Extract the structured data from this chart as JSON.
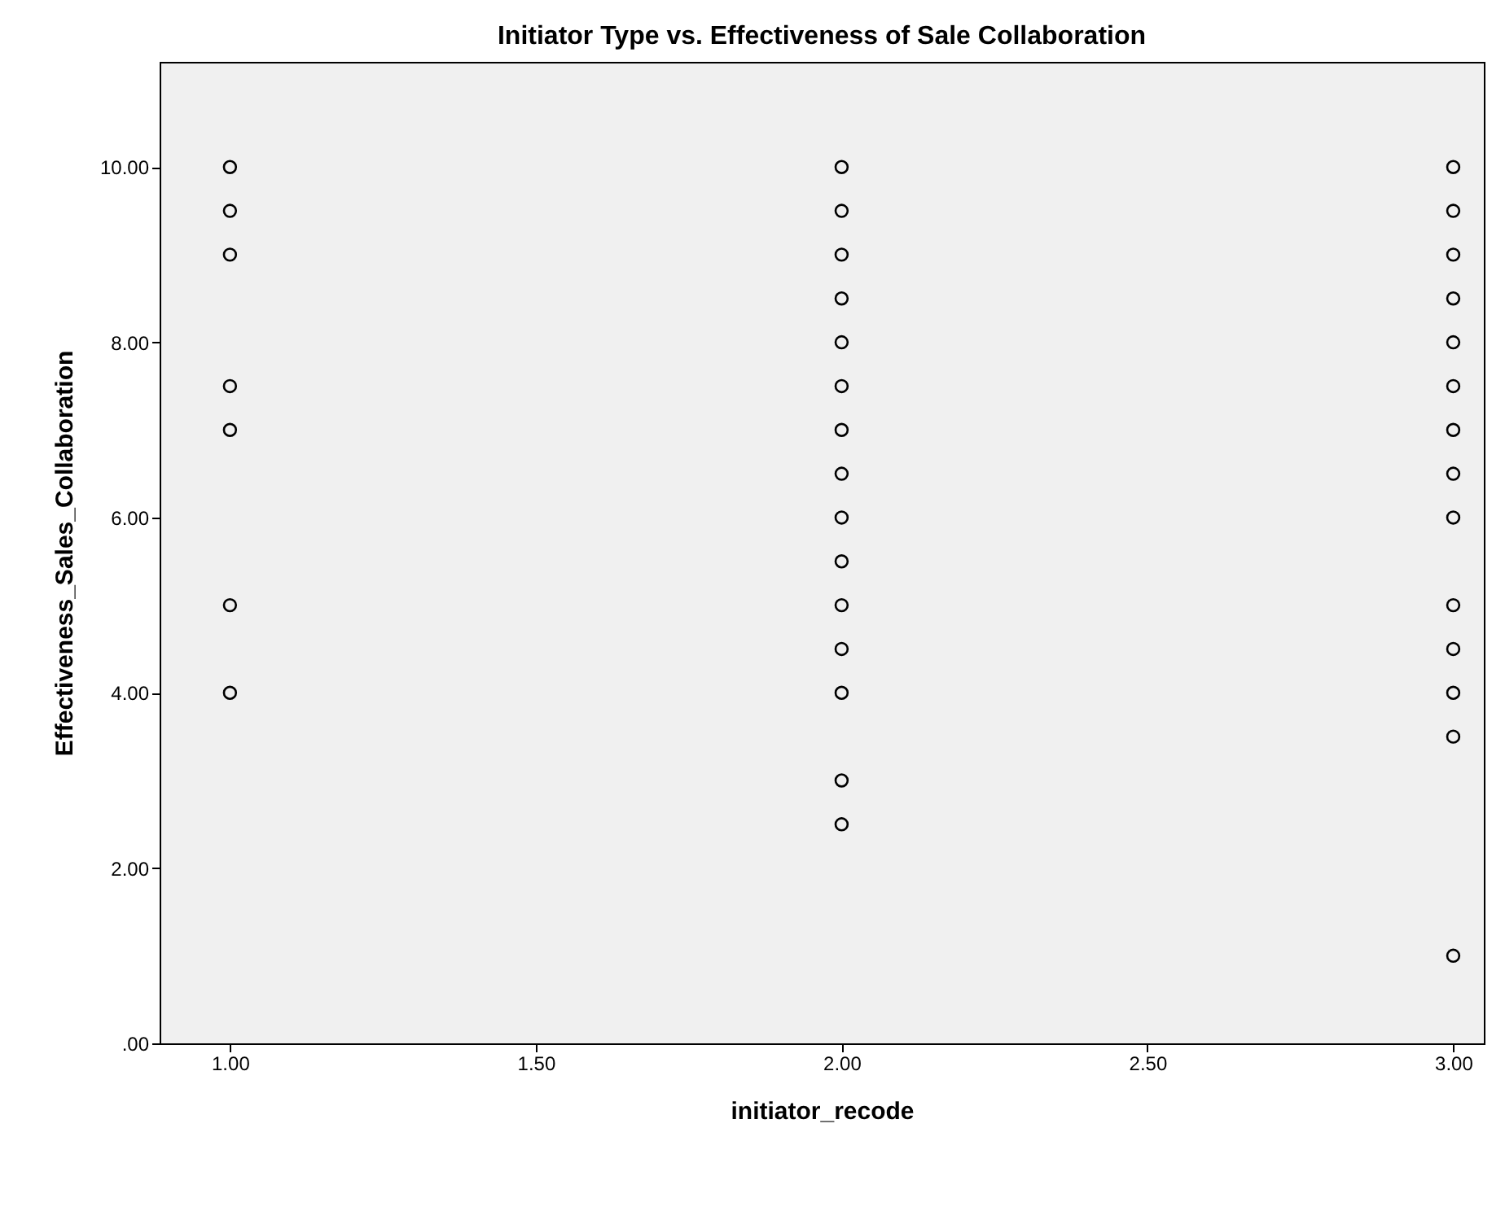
{
  "chart_data": {
    "type": "scatter",
    "title": "Initiator Type vs. Effectiveness of Sale Collaboration",
    "xlabel": "initiator_recode",
    "ylabel": "Effectiveness_Sales_Collaboration",
    "xlim": [
      0.885,
      3.05
    ],
    "ylim": [
      0,
      11.2
    ],
    "xticks": [
      {
        "value": 1,
        "label": "1.00"
      },
      {
        "value": 1.5,
        "label": "1.50"
      },
      {
        "value": 2,
        "label": "2.00"
      },
      {
        "value": 2.5,
        "label": "2.50"
      },
      {
        "value": 3,
        "label": "3.00"
      }
    ],
    "yticks": [
      {
        "value": 0,
        "label": ".00"
      },
      {
        "value": 2,
        "label": "2.00"
      },
      {
        "value": 4,
        "label": "4.00"
      },
      {
        "value": 6,
        "label": "6.00"
      },
      {
        "value": 8,
        "label": "8.00"
      },
      {
        "value": 10,
        "label": "10.00"
      }
    ],
    "grid": false,
    "marker": "circle",
    "legend": false,
    "series": [
      {
        "color": "#000000",
        "x": [
          1,
          1,
          1,
          1,
          1,
          1,
          1,
          2,
          2,
          2,
          2,
          2,
          2,
          2,
          2,
          2,
          2,
          2,
          2,
          2,
          2,
          2,
          3,
          3,
          3,
          3,
          3,
          3,
          3,
          3,
          3,
          3,
          3,
          3,
          3,
          3
        ],
        "values": [
          10,
          9.5,
          9,
          7.5,
          7,
          5,
          4,
          10,
          9.5,
          9,
          8.5,
          8,
          7.5,
          7,
          6.5,
          6,
          5.5,
          5,
          4.5,
          4,
          3,
          2.5,
          10,
          9.5,
          9,
          8.5,
          8,
          7.5,
          7,
          6.5,
          6,
          5,
          4.5,
          4,
          3.5,
          1
        ]
      }
    ]
  }
}
